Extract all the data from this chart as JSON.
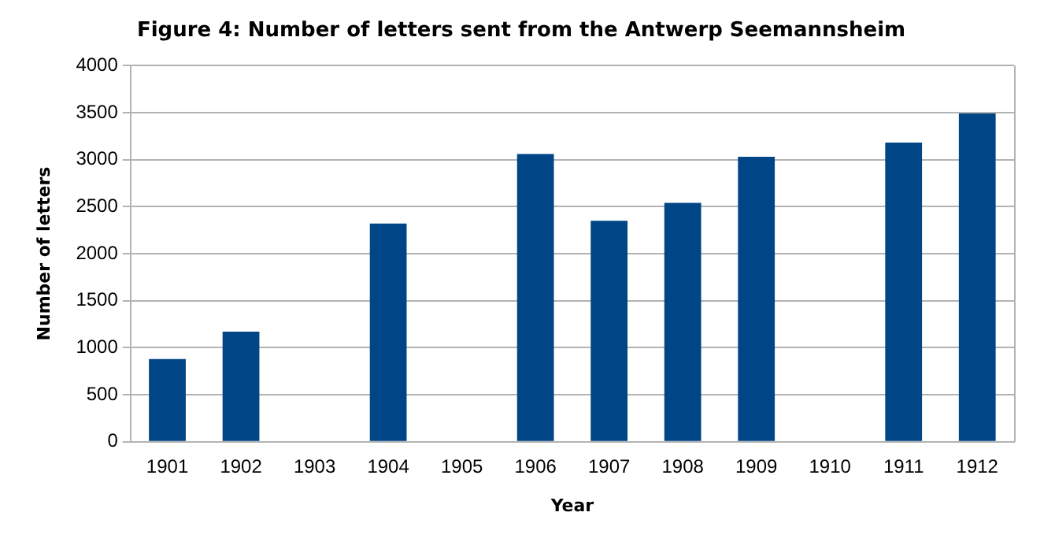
{
  "chart_data": {
    "type": "bar",
    "title": "Figure 4: Number of letters sent from the Antwerp Seemannsheim",
    "xlabel": "Year",
    "ylabel": "Number of letters",
    "categories": [
      "1901",
      "1902",
      "1903",
      "1904",
      "1905",
      "1906",
      "1907",
      "1908",
      "1909",
      "1910",
      "1911",
      "1912"
    ],
    "values": [
      880,
      1170,
      null,
      2320,
      null,
      3060,
      2350,
      2540,
      3030,
      null,
      3180,
      3490
    ],
    "color": "#004586",
    "ylim": [
      0,
      4000
    ],
    "yticks": [
      0,
      500,
      1000,
      1500,
      2000,
      2500,
      3000,
      3500,
      4000
    ],
    "grid": "y",
    "legend": false
  }
}
